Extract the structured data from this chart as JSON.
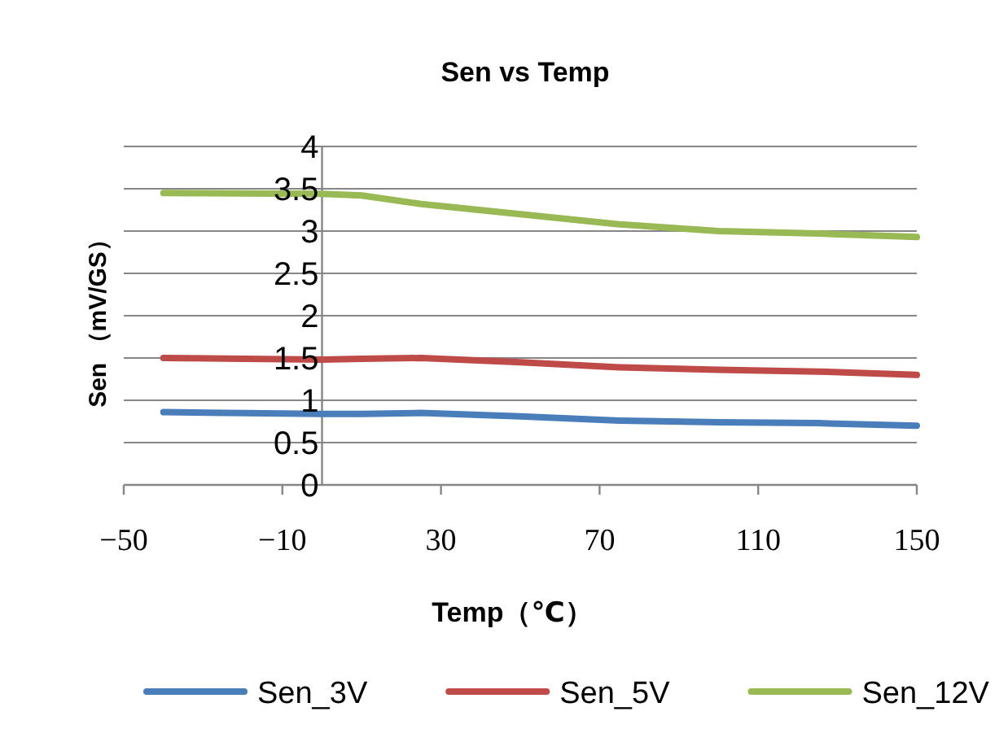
{
  "chart_data": {
    "type": "line",
    "title": "Sen vs Temp",
    "xlabel": "Temp（℃）",
    "ylabel": "Sen （mV/GS）",
    "x": [
      -40,
      0,
      10,
      25,
      50,
      75,
      100,
      125,
      150
    ],
    "series": [
      {
        "name": "Sen_3V",
        "color": "#4a7ebb",
        "values": [
          0.86,
          0.84,
          0.84,
          0.85,
          0.81,
          0.76,
          0.74,
          0.73,
          0.7
        ]
      },
      {
        "name": "Sen_5V",
        "color": "#be4b48",
        "values": [
          1.5,
          1.48,
          1.49,
          1.5,
          1.45,
          1.39,
          1.36,
          1.34,
          1.3
        ]
      },
      {
        "name": "Sen_12V",
        "color": "#98b954",
        "values": [
          3.45,
          3.44,
          3.42,
          3.32,
          3.2,
          3.08,
          3.0,
          2.97,
          2.93
        ]
      }
    ],
    "xlim": [
      -50,
      150
    ],
    "xticks": [
      {
        "value": -50,
        "label": "−50"
      },
      {
        "value": -10,
        "label": "−10"
      },
      30,
      70,
      110,
      150
    ],
    "ylim": [
      0,
      4
    ],
    "yticks": [
      0,
      0.5,
      1,
      1.5,
      2,
      2.5,
      3,
      3.5,
      4
    ],
    "grid": "y",
    "legend": "bottom",
    "marker": "none",
    "line_style": "solid"
  }
}
